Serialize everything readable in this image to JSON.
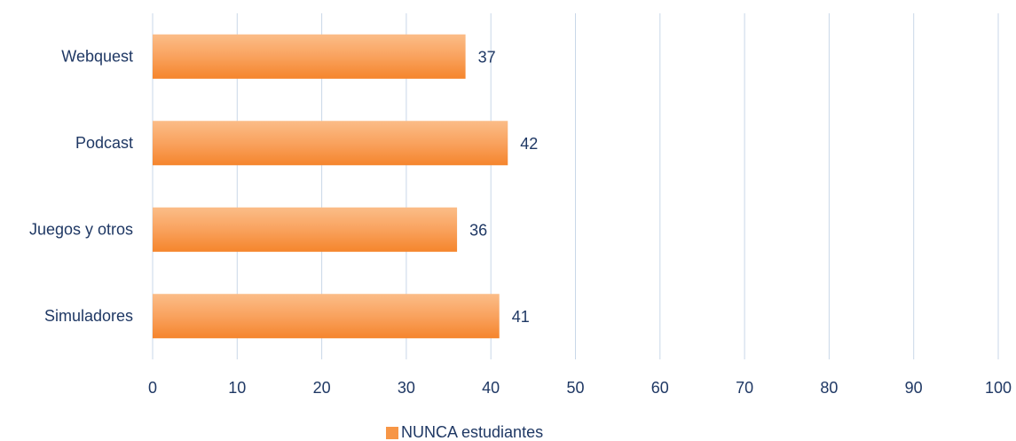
{
  "chart_data": {
    "type": "bar",
    "orientation": "horizontal",
    "categories": [
      "Webquest",
      "Podcast",
      "Juegos y otros",
      "Simuladores"
    ],
    "series": [
      {
        "name": "NUNCA estudiantes",
        "color": "#f79646",
        "values": [
          37,
          42,
          36,
          41
        ]
      }
    ],
    "xlim": [
      0,
      100
    ],
    "xticks": [
      0,
      10,
      20,
      30,
      40,
      50,
      60,
      70,
      80,
      90,
      100
    ],
    "grid": true,
    "legend": "bottom"
  }
}
